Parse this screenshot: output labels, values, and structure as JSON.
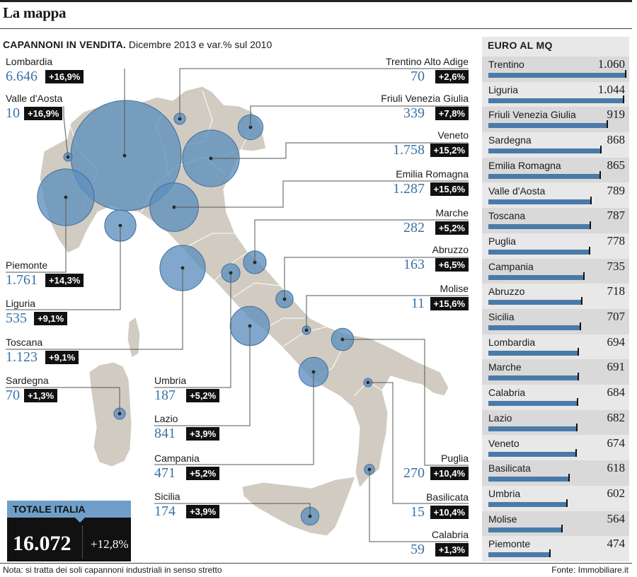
{
  "header": {
    "section_title": "La mappa",
    "subtitle_bold": "CAPANNONI IN VENDITA.",
    "subtitle_rest": "Dicembre 2013 e var.% sul 2010"
  },
  "colors": {
    "accent_blue": "#3a72a6",
    "bubble_fill": "#5d8fbe",
    "land": "#d2cbc1",
    "bar_blue": "#4a7aa8"
  },
  "chart_data": [
    {
      "type": "bubble-map",
      "title": "CAPANNONI IN VENDITA. Dicembre 2013 e var.% sul 2010",
      "regions": [
        {
          "name": "Lombardia",
          "count": "6.646",
          "count_value": 6646,
          "change": "+16,9%"
        },
        {
          "name": "Valle d'Aosta",
          "count": "10",
          "count_value": 10,
          "change": "+16,9%"
        },
        {
          "name": "Piemonte",
          "count": "1.761",
          "count_value": 1761,
          "change": "+14,3%"
        },
        {
          "name": "Liguria",
          "count": "535",
          "count_value": 535,
          "change": "+9,1%"
        },
        {
          "name": "Toscana",
          "count": "1.123",
          "count_value": 1123,
          "change": "+9,1%"
        },
        {
          "name": "Sardegna",
          "count": "70",
          "count_value": 70,
          "change": "+1,3%"
        },
        {
          "name": "Trentino Alto Adige",
          "count": "70",
          "count_value": 70,
          "change": "+2,6%"
        },
        {
          "name": "Friuli Venezia Giulia",
          "count": "339",
          "count_value": 339,
          "change": "+7,8%"
        },
        {
          "name": "Veneto",
          "count": "1.758",
          "count_value": 1758,
          "change": "+15,2%"
        },
        {
          "name": "Emilia Romagna",
          "count": "1.287",
          "count_value": 1287,
          "change": "+15,6%"
        },
        {
          "name": "Marche",
          "count": "282",
          "count_value": 282,
          "change": "+5,2%"
        },
        {
          "name": "Abruzzo",
          "count": "163",
          "count_value": 163,
          "change": "+6,5%"
        },
        {
          "name": "Molise",
          "count": "11",
          "count_value": 11,
          "change": "+15,6%"
        },
        {
          "name": "Umbria",
          "count": "187",
          "count_value": 187,
          "change": "+5,2%"
        },
        {
          "name": "Lazio",
          "count": "841",
          "count_value": 841,
          "change": "+3,9%"
        },
        {
          "name": "Campania",
          "count": "471",
          "count_value": 471,
          "change": "+5,2%"
        },
        {
          "name": "Sicilia",
          "count": "174",
          "count_value": 174,
          "change": "+3,9%"
        },
        {
          "name": "Puglia",
          "count": "270",
          "count_value": 270,
          "change": "+10,4%"
        },
        {
          "name": "Basilicata",
          "count": "15",
          "count_value": 15,
          "change": "+10,4%"
        },
        {
          "name": "Calabria",
          "count": "59",
          "count_value": 59,
          "change": "+1,3%"
        }
      ],
      "total": {
        "label": "TOTALE ITALIA",
        "value": "16.072",
        "change": "+12,8%"
      }
    },
    {
      "type": "bar",
      "title": "EURO AL MQ",
      "items": [
        {
          "name": "Trentino",
          "label": "1.060",
          "value": 1060
        },
        {
          "name": "Liguria",
          "label": "1.044",
          "value": 1044
        },
        {
          "name": "Friuli Venezia Giulia",
          "label": "919",
          "value": 919
        },
        {
          "name": "Sardegna",
          "label": "868",
          "value": 868
        },
        {
          "name": "Emilia Romagna",
          "label": "865",
          "value": 865
        },
        {
          "name": "Valle d'Aosta",
          "label": "789",
          "value": 789
        },
        {
          "name": "Toscana",
          "label": "787",
          "value": 787
        },
        {
          "name": "Puglia",
          "label": "778",
          "value": 778
        },
        {
          "name": "Campania",
          "label": "735",
          "value": 735
        },
        {
          "name": "Abruzzo",
          "label": "718",
          "value": 718
        },
        {
          "name": "Sicilia",
          "label": "707",
          "value": 707
        },
        {
          "name": "Lombardia",
          "label": "694",
          "value": 694
        },
        {
          "name": "Marche",
          "label": "691",
          "value": 691
        },
        {
          "name": "Calabria",
          "label": "684",
          "value": 684
        },
        {
          "name": "Lazio",
          "label": "682",
          "value": 682
        },
        {
          "name": "Veneto",
          "label": "674",
          "value": 674
        },
        {
          "name": "Basilicata",
          "label": "618",
          "value": 618
        },
        {
          "name": "Umbria",
          "label": "602",
          "value": 602
        },
        {
          "name": "Molise",
          "label": "564",
          "value": 564
        },
        {
          "name": "Piemonte",
          "label": "474",
          "value": 474
        }
      ],
      "xlim": [
        0,
        1060
      ]
    }
  ],
  "footer": {
    "note": "Nota: si tratta dei soli capannoni industriali in senso stretto",
    "source": "Fonte: Immobiliare.it"
  }
}
